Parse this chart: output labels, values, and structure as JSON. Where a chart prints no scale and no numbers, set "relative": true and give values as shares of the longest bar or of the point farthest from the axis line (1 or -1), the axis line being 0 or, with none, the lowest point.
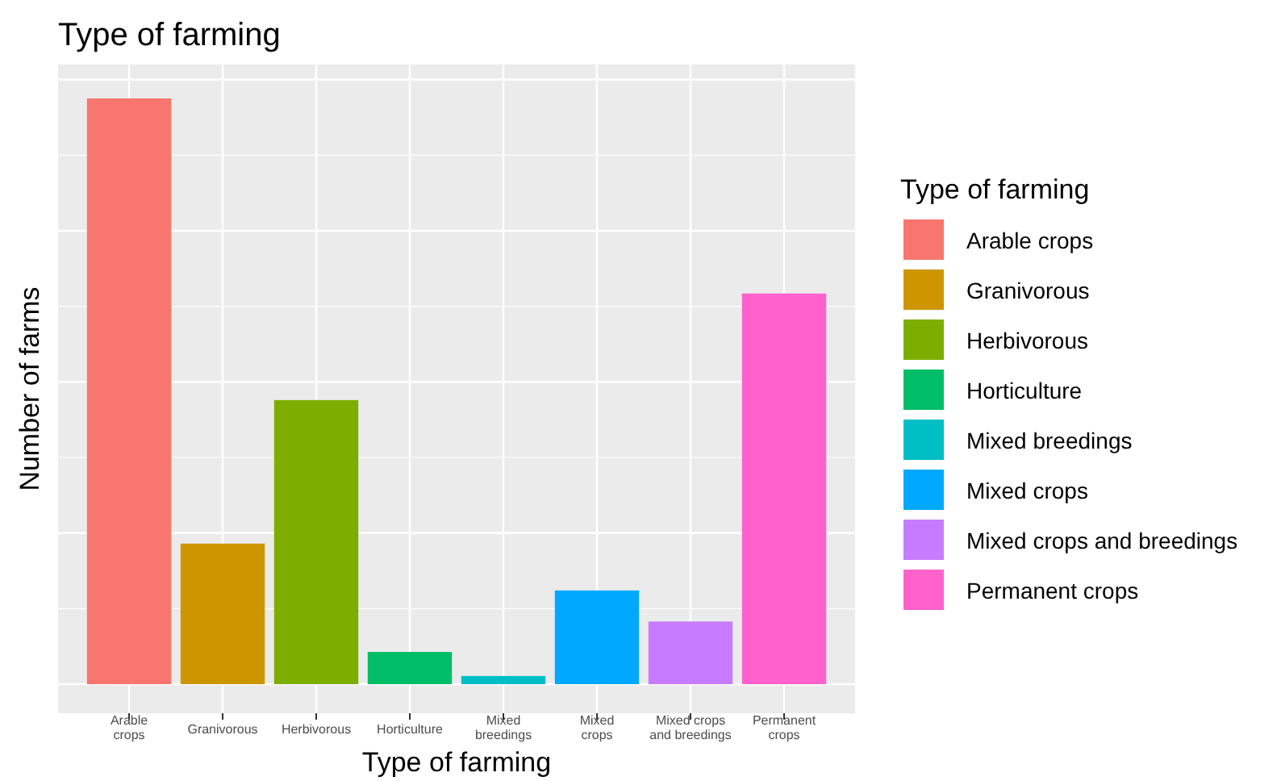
{
  "chart_data": {
    "type": "bar",
    "title": "Type of farming",
    "xlabel": "Type of farming",
    "ylabel": "Number of farms",
    "legend_title": "Type of farming",
    "legend": "right",
    "grid": true,
    "relative": true,
    "categories": [
      "Arable crops",
      "Granivorous",
      "Herbivorous",
      "Horticulture",
      "Mixed breedings",
      "Mixed crops",
      "Mixed crops and breedings",
      "Permanent crops"
    ],
    "series": [
      {
        "name": "Arable crops",
        "color": "#f8766d",
        "values": [
          1,
          null,
          null,
          null,
          null,
          null,
          null,
          null
        ]
      },
      {
        "name": "Granivorous",
        "color": "#cd9600",
        "values": [
          null,
          0.24,
          null,
          null,
          null,
          null,
          null,
          null
        ]
      },
      {
        "name": "Herbivorous",
        "color": "#7cae00",
        "values": [
          null,
          null,
          0.485,
          null,
          null,
          null,
          null,
          null
        ]
      },
      {
        "name": "Horticulture",
        "color": "#00be67",
        "values": [
          null,
          null,
          null,
          0.055,
          null,
          null,
          null,
          null
        ]
      },
      {
        "name": "Mixed breedings",
        "color": "#00bfc4",
        "values": [
          null,
          null,
          null,
          null,
          0.014,
          null,
          null,
          null
        ]
      },
      {
        "name": "Mixed crops",
        "color": "#00a9ff",
        "values": [
          null,
          null,
          null,
          null,
          null,
          0.16,
          null,
          null
        ]
      },
      {
        "name": "Mixed crops and breedings",
        "color": "#c77cff",
        "values": [
          null,
          null,
          null,
          null,
          null,
          null,
          0.107,
          null
        ]
      },
      {
        "name": "Permanent crops",
        "color": "#ff61cc",
        "values": [
          null,
          null,
          null,
          null,
          null,
          null,
          null,
          0.667
        ]
      }
    ]
  }
}
